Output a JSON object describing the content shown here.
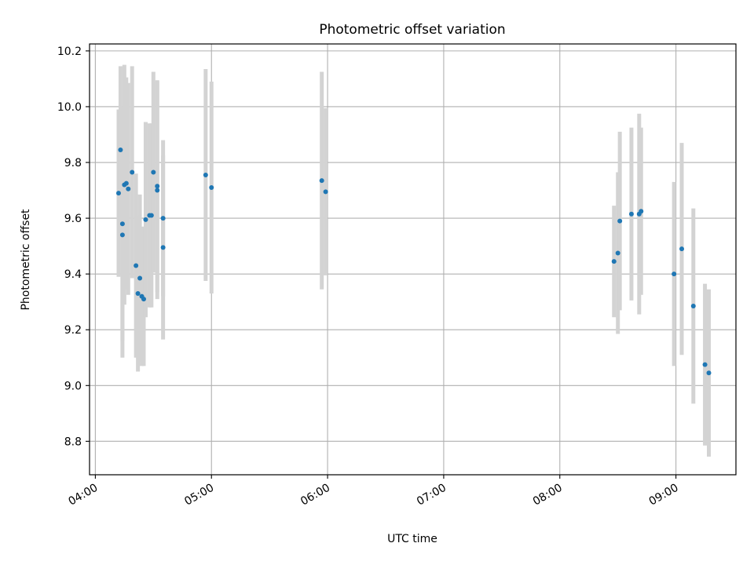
{
  "chart_data": {
    "type": "scatter",
    "title": "Photometric offset variation",
    "xlabel": "UTC time",
    "ylabel": "Photometric offset",
    "x_ticks": [
      "04:00",
      "05:00",
      "06:00",
      "07:00",
      "08:00",
      "09:00"
    ],
    "y_ticks": [
      "8.8",
      "9.0",
      "9.2",
      "9.4",
      "9.6",
      "9.8",
      "10.0",
      "10.2"
    ],
    "xlim": [
      "03:57",
      "09:31"
    ],
    "ylim": [
      8.68,
      10.225
    ],
    "grid": true,
    "colors": {
      "points": "#1f77b4",
      "errorbars": "#d3d3d3",
      "grid": "#b0b0b0"
    },
    "points": [
      {
        "x": "04:12",
        "y": 9.69,
        "yerr": 0.3
      },
      {
        "x": "04:13",
        "y": 9.845,
        "yerr": 0.3
      },
      {
        "x": "04:14",
        "y": 9.54,
        "yerr": 0.44
      },
      {
        "x": "04:14",
        "y": 9.58,
        "yerr": 0.42
      },
      {
        "x": "04:15",
        "y": 9.72,
        "yerr": 0.43
      },
      {
        "x": "04:16",
        "y": 9.725,
        "yerr": 0.38
      },
      {
        "x": "04:17",
        "y": 9.705,
        "yerr": 0.38
      },
      {
        "x": "04:19",
        "y": 9.765,
        "yerr": 0.38
      },
      {
        "x": "04:21",
        "y": 9.43,
        "yerr": 0.33
      },
      {
        "x": "04:22",
        "y": 9.33,
        "yerr": 0.28
      },
      {
        "x": "04:23",
        "y": 9.385,
        "yerr": 0.3
      },
      {
        "x": "04:24",
        "y": 9.32,
        "yerr": 0.25
      },
      {
        "x": "04:25",
        "y": 9.31,
        "yerr": 0.24
      },
      {
        "x": "04:26",
        "y": 9.595,
        "yerr": 0.35
      },
      {
        "x": "04:28",
        "y": 9.61,
        "yerr": 0.33
      },
      {
        "x": "04:29",
        "y": 9.61,
        "yerr": 0.33
      },
      {
        "x": "04:30",
        "y": 9.765,
        "yerr": 0.36
      },
      {
        "x": "04:32",
        "y": 9.715,
        "yerr": 0.38
      },
      {
        "x": "04:32",
        "y": 9.7,
        "yerr": 0.39
      },
      {
        "x": "04:35",
        "y": 9.6,
        "yerr": 0.28
      },
      {
        "x": "04:35",
        "y": 9.495,
        "yerr": 0.33
      },
      {
        "x": "04:57",
        "y": 9.755,
        "yerr": 0.38
      },
      {
        "x": "05:00",
        "y": 9.71,
        "yerr": 0.38
      },
      {
        "x": "05:57",
        "y": 9.735,
        "yerr": 0.39
      },
      {
        "x": "05:59",
        "y": 9.695,
        "yerr": 0.3
      },
      {
        "x": "08:28",
        "y": 9.445,
        "yerr": 0.2
      },
      {
        "x": "08:30",
        "y": 9.475,
        "yerr": 0.29
      },
      {
        "x": "08:31",
        "y": 9.59,
        "yerr": 0.32
      },
      {
        "x": "08:37",
        "y": 9.615,
        "yerr": 0.31
      },
      {
        "x": "08:41",
        "y": 9.615,
        "yerr": 0.36
      },
      {
        "x": "08:42",
        "y": 9.625,
        "yerr": 0.3
      },
      {
        "x": "08:59",
        "y": 9.4,
        "yerr": 0.33
      },
      {
        "x": "09:03",
        "y": 9.49,
        "yerr": 0.38
      },
      {
        "x": "09:09",
        "y": 9.285,
        "yerr": 0.35
      },
      {
        "x": "09:15",
        "y": 9.075,
        "yerr": 0.29
      },
      {
        "x": "09:17",
        "y": 9.045,
        "yerr": 0.3
      }
    ]
  }
}
